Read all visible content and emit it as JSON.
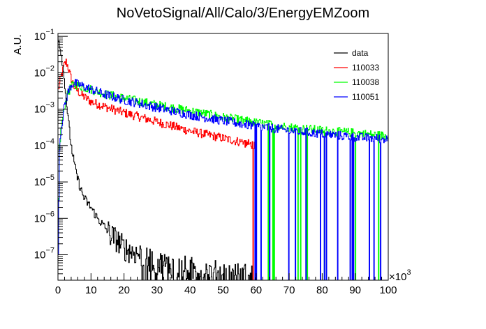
{
  "chart_data": {
    "type": "line",
    "title": "NoVetoSignal/All/Calo/3/EnergyEMZoom",
    "xlabel": "",
    "ylabel": "A.U.",
    "x_multiplier_label": "×10",
    "x_multiplier_exp": "3",
    "xlim": [
      0,
      100000
    ],
    "ylim": [
      2e-08,
      0.12
    ],
    "y_log": true,
    "grid": false,
    "legend_position": "top-right",
    "x_ticks": [
      {
        "v": 0,
        "label": "0"
      },
      {
        "v": 10000,
        "label": "10"
      },
      {
        "v": 20000,
        "label": "20"
      },
      {
        "v": 30000,
        "label": "30"
      },
      {
        "v": 40000,
        "label": "40"
      },
      {
        "v": 50000,
        "label": "50"
      },
      {
        "v": 60000,
        "label": "60"
      },
      {
        "v": 70000,
        "label": "70"
      },
      {
        "v": 80000,
        "label": "80"
      },
      {
        "v": 90000,
        "label": "90"
      },
      {
        "v": 100000,
        "label": "100"
      }
    ],
    "y_ticks": [
      {
        "v": 1e-07,
        "base": "10",
        "exp": "−7"
      },
      {
        "v": 1e-06,
        "base": "10",
        "exp": "−6"
      },
      {
        "v": 1e-05,
        "base": "10",
        "exp": "−5"
      },
      {
        "v": 0.0001,
        "base": "10",
        "exp": "−4"
      },
      {
        "v": 0.001,
        "base": "10",
        "exp": "−3"
      },
      {
        "v": 0.01,
        "base": "10",
        "exp": "−2"
      },
      {
        "v": 0.1,
        "base": "10",
        "exp": "−1"
      }
    ],
    "series": [
      {
        "name": "data",
        "color": "#000000",
        "x": [
          0,
          500,
          1000,
          1500,
          2000,
          2500,
          3000,
          3500,
          4000,
          5000,
          6000,
          7000,
          8000,
          10000,
          12000,
          14000,
          16000,
          18000,
          20000,
          25000,
          30000,
          40000,
          50000,
          60000
        ],
        "y": [
          0.1,
          0.06,
          0.035,
          0.015,
          0.006,
          0.002,
          0.0007,
          0.00025,
          0.0001,
          3e-05,
          1.2e-05,
          6e-06,
          3.5e-06,
          2e-06,
          1e-06,
          6e-07,
          3.5e-07,
          2.5e-07,
          1.5e-07,
          1e-07,
          6e-08,
          4e-08,
          3e-08,
          2.5e-08
        ]
      },
      {
        "name": "110033",
        "color": "#ff0000",
        "x": [
          0,
          1000,
          2000,
          2500,
          3000,
          4000,
          5000,
          7000,
          10000,
          15000,
          20000,
          25000,
          30000,
          40000,
          50000,
          60000
        ],
        "y": [
          0.003,
          0.008,
          0.017,
          0.02,
          0.015,
          0.007,
          0.004,
          0.0025,
          0.0016,
          0.0011,
          0.0008,
          0.0006,
          0.00045,
          0.00025,
          0.00016,
          0.0001
        ]
      },
      {
        "name": "110038",
        "color": "#00ff00",
        "x": [
          0,
          500,
          1000,
          2000,
          3000,
          4000,
          5000,
          7000,
          10000,
          15000,
          20000,
          30000,
          40000,
          50000,
          60000,
          70000,
          80000,
          90000,
          100000
        ],
        "y": [
          2e-08,
          0.0001,
          0.0003,
          0.0012,
          0.0026,
          0.0042,
          0.0048,
          0.0042,
          0.0035,
          0.0025,
          0.002,
          0.0013,
          0.0009,
          0.0006,
          0.00042,
          0.00032,
          0.00026,
          0.00022,
          0.00018
        ]
      },
      {
        "name": "110051",
        "color": "#0000ff",
        "x": [
          0,
          500,
          1000,
          2000,
          3000,
          4000,
          5000,
          7000,
          10000,
          15000,
          20000,
          30000,
          40000,
          50000,
          60000,
          70000,
          80000,
          90000,
          100000
        ],
        "y": [
          2e-08,
          0.0001,
          0.0003,
          0.0012,
          0.0028,
          0.0045,
          0.0052,
          0.0045,
          0.0035,
          0.0024,
          0.0018,
          0.0011,
          0.0007,
          0.00048,
          0.00034,
          0.00026,
          0.00021,
          0.00017,
          0.00015
        ]
      }
    ]
  }
}
